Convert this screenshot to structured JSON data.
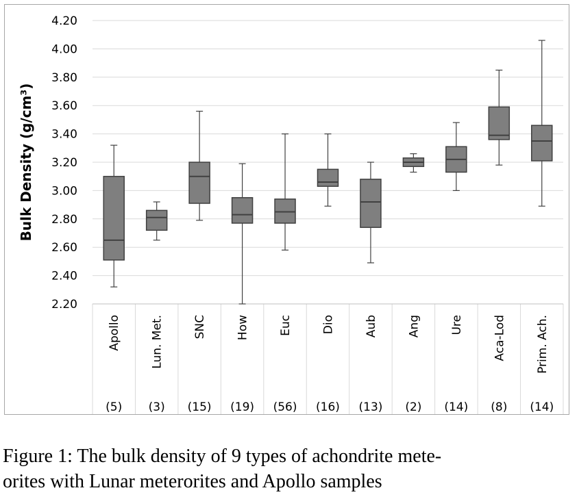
{
  "chart_data": {
    "type": "boxplot",
    "ylabel": "Bulk Density (g/cm³)",
    "ylim": [
      2.2,
      4.2
    ],
    "yticks": [
      "2.20",
      "2.40",
      "2.60",
      "2.80",
      "3.00",
      "3.20",
      "3.40",
      "3.60",
      "3.80",
      "4.00",
      "4.20"
    ],
    "grid": true,
    "box_color": "#7f7f7f",
    "categories": [
      "Apollo",
      "Lun. Met.",
      "SNC",
      "How",
      "Euc",
      "Dio",
      "Aub",
      "Ang",
      "Ure",
      "Aca-Lod",
      "Prim. Ach."
    ],
    "counts": [
      "(5)",
      "(3)",
      "(15)",
      "(19)",
      "(56)",
      "(16)",
      "(13)",
      "(2)",
      "(14)",
      "(8)",
      "(14)"
    ],
    "boxes": [
      {
        "min": 2.32,
        "q1": 2.51,
        "median": 2.65,
        "q3": 3.1,
        "max": 3.32
      },
      {
        "min": 2.65,
        "q1": 2.72,
        "median": 2.81,
        "q3": 2.86,
        "max": 2.92
      },
      {
        "min": 2.79,
        "q1": 2.91,
        "median": 3.1,
        "q3": 3.2,
        "max": 3.56
      },
      {
        "min": 2.2,
        "q1": 2.77,
        "median": 2.83,
        "q3": 2.95,
        "max": 3.19
      },
      {
        "min": 2.58,
        "q1": 2.77,
        "median": 2.85,
        "q3": 2.94,
        "max": 3.4
      },
      {
        "min": 2.89,
        "q1": 3.03,
        "median": 3.06,
        "q3": 3.15,
        "max": 3.4
      },
      {
        "min": 2.49,
        "q1": 2.74,
        "median": 2.92,
        "q3": 3.08,
        "max": 3.2
      },
      {
        "min": 3.13,
        "q1": 3.17,
        "median": 3.2,
        "q3": 3.23,
        "max": 3.26
      },
      {
        "min": 3.0,
        "q1": 3.13,
        "median": 3.22,
        "q3": 3.31,
        "max": 3.48
      },
      {
        "min": 3.18,
        "q1": 3.36,
        "median": 3.39,
        "q3": 3.59,
        "max": 3.85
      },
      {
        "min": 2.89,
        "q1": 3.21,
        "median": 3.35,
        "q3": 3.46,
        "max": 4.06
      }
    ]
  },
  "caption": {
    "line1": "Figure 1:  The bulk density of 9 types of achondrite mete-",
    "line2": "orites with Lunar meterorites and Apollo samples"
  }
}
